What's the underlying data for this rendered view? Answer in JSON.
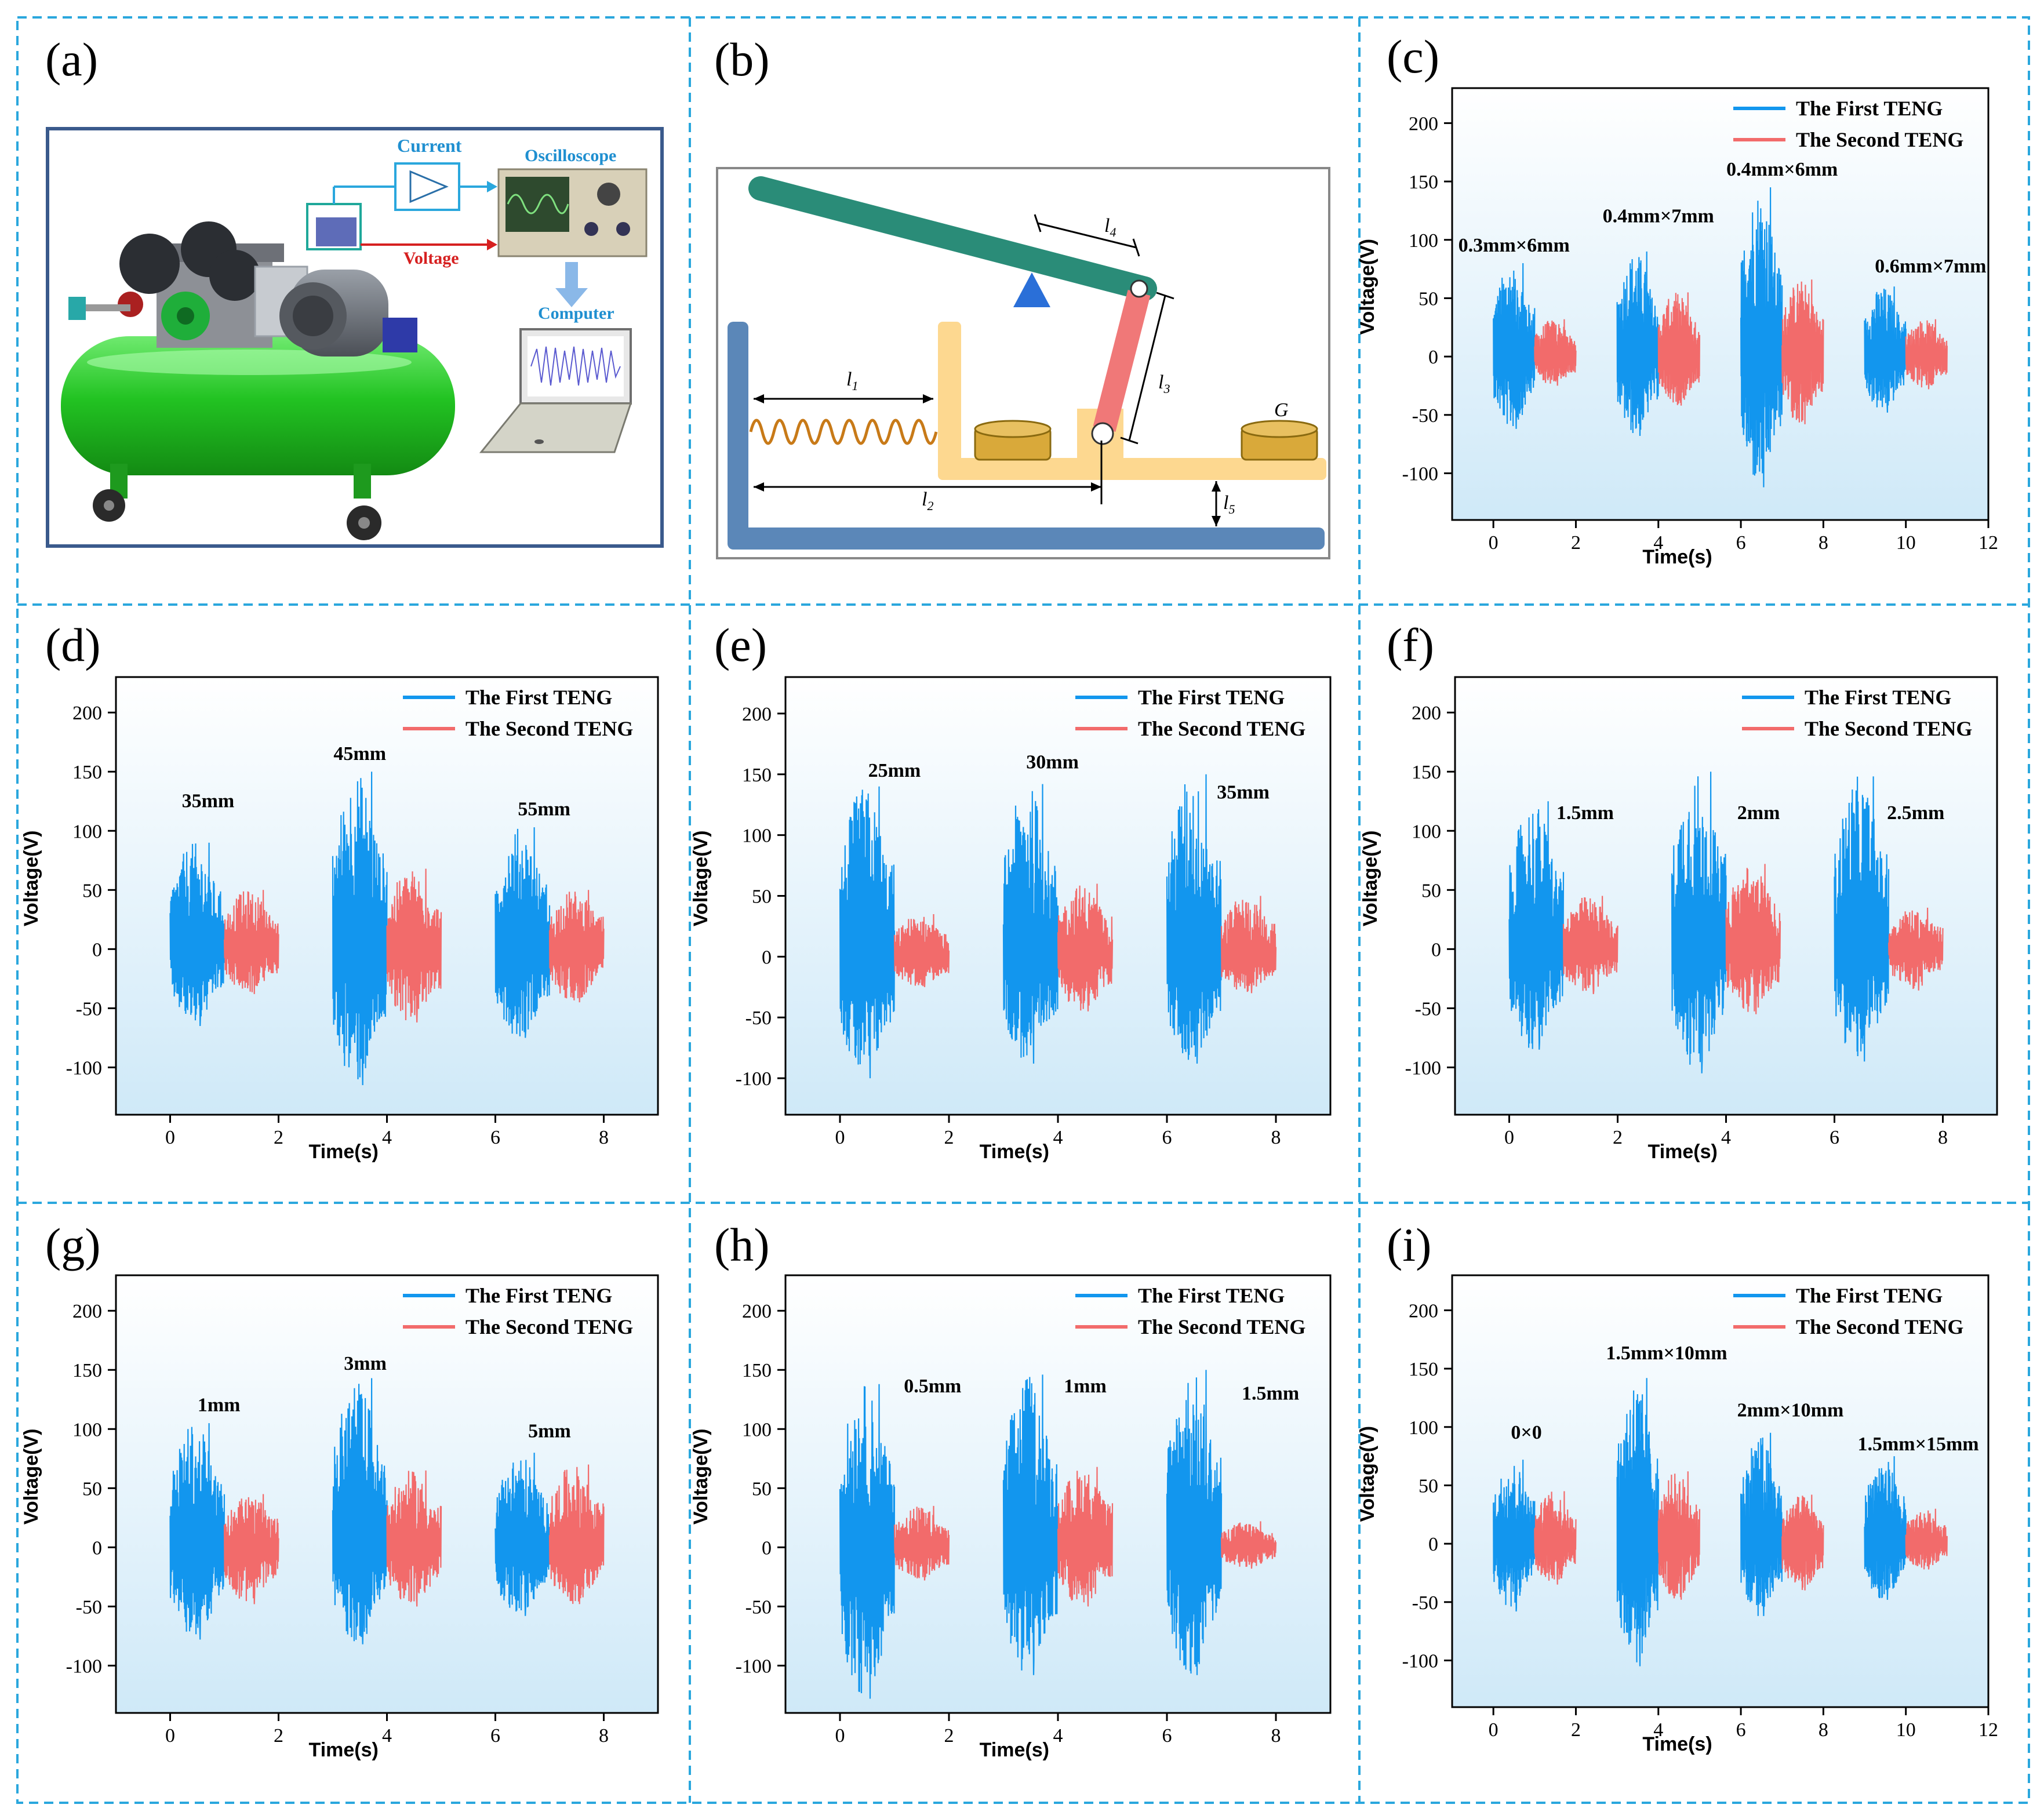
{
  "colors": {
    "first": "#1296ee",
    "second": "#f26b6b",
    "panel_border": "#2aa7dd",
    "axis": "#000000",
    "bg_top": "#ffffff",
    "bg_bottom": "#cfe9f8",
    "compressor_green": "#22c322",
    "machine_gray": "#7d8087",
    "lever_teal": "#2a8c78",
    "link_red": "#f07878",
    "frame_yellow": "#fdd890",
    "base_blue": "#5b87b8",
    "spring": "#c87a18",
    "weight": "#d9a93a",
    "pivot": "#2a6fd8"
  },
  "panels": {
    "a": {
      "label": "(a)",
      "current_label": "Current",
      "oscilloscope_label": "Oscilloscope",
      "voltage_label": "Voltage",
      "computer_label": "Computer"
    },
    "b": {
      "label": "(b)",
      "l4": "l",
      "l4_sub": "4",
      "l3": "l",
      "l3_sub": "3",
      "l1": "l",
      "l1_sub": "1",
      "l2": "l",
      "l2_sub": "2",
      "l5": "l",
      "l5_sub": "5",
      "g": "G"
    }
  },
  "chart_data": [
    {
      "id": "c",
      "label": "(c)",
      "type": "line",
      "xlabel": "Time(s)",
      "ylabel": "Voltage(V)",
      "xlim": [
        -1,
        12
      ],
      "ylim": [
        -140,
        230
      ],
      "xticks": [
        0,
        2,
        4,
        6,
        8,
        10,
        12
      ],
      "yticks": [
        -100,
        -50,
        0,
        50,
        100,
        150,
        200
      ],
      "legend": [
        "The First TENG",
        "The Second TENG"
      ],
      "groups": [
        {
          "label": "0.3mm×6mm",
          "label_x": 0.5,
          "label_y": 90,
          "first": {
            "t": [
              0,
              1
            ],
            "max": 80,
            "min": -62
          },
          "second": {
            "t": [
              1,
              2
            ],
            "max": 32,
            "min": -25
          }
        },
        {
          "label": "0.4mm×7mm",
          "label_x": 4.0,
          "label_y": 115,
          "first": {
            "t": [
              3,
              4
            ],
            "max": 90,
            "min": -68
          },
          "second": {
            "t": [
              4,
              5
            ],
            "max": 55,
            "min": -42
          }
        },
        {
          "label": "0.4mm×6mm",
          "label_x": 7.0,
          "label_y": 155,
          "first": {
            "t": [
              6,
              7
            ],
            "max": 145,
            "min": -112
          },
          "second": {
            "t": [
              7,
              8
            ],
            "max": 66,
            "min": -58
          }
        },
        {
          "label": "0.6mm×7mm",
          "label_x": 10.6,
          "label_y": 72,
          "first": {
            "t": [
              9,
              10
            ],
            "max": 60,
            "min": -48
          },
          "second": {
            "t": [
              10,
              11
            ],
            "max": 32,
            "min": -28
          }
        }
      ]
    },
    {
      "id": "d",
      "label": "(d)",
      "type": "line",
      "xlabel": "Time(s)",
      "ylabel": "Voltage(V)",
      "xlim": [
        -1,
        9
      ],
      "ylim": [
        -140,
        230
      ],
      "xticks": [
        0,
        2,
        4,
        6,
        8
      ],
      "yticks": [
        -100,
        -50,
        0,
        50,
        100,
        150,
        200
      ],
      "legend": [
        "The First TENG",
        "The Second TENG"
      ],
      "groups": [
        {
          "label": "35mm",
          "label_x": 0.7,
          "label_y": 120,
          "first": {
            "t": [
              0,
              1
            ],
            "max": 90,
            "min": -65
          },
          "second": {
            "t": [
              1,
              2
            ],
            "max": 50,
            "min": -38
          }
        },
        {
          "label": "45mm",
          "label_x": 3.5,
          "label_y": 160,
          "first": {
            "t": [
              3,
              4
            ],
            "max": 150,
            "min": -115
          },
          "second": {
            "t": [
              4,
              5
            ],
            "max": 68,
            "min": -62
          }
        },
        {
          "label": "55mm",
          "label_x": 6.9,
          "label_y": 113,
          "first": {
            "t": [
              6,
              7
            ],
            "max": 103,
            "min": -75
          },
          "second": {
            "t": [
              7,
              8
            ],
            "max": 50,
            "min": -45
          }
        }
      ]
    },
    {
      "id": "e",
      "label": "(e)",
      "type": "line",
      "xlabel": "Time(s)",
      "ylabel": "Voltage(V)",
      "xlim": [
        -1,
        9
      ],
      "ylim": [
        -130,
        230
      ],
      "xticks": [
        0,
        2,
        4,
        6,
        8
      ],
      "yticks": [
        -100,
        -50,
        0,
        50,
        100,
        150,
        200
      ],
      "legend": [
        "The First TENG",
        "The Second TENG"
      ],
      "groups": [
        {
          "label": "25mm",
          "label_x": 1.0,
          "label_y": 148,
          "first": {
            "t": [
              0,
              1
            ],
            "max": 140,
            "min": -100
          },
          "second": {
            "t": [
              1,
              2
            ],
            "max": 35,
            "min": -25
          }
        },
        {
          "label": "30mm",
          "label_x": 3.9,
          "label_y": 155,
          "first": {
            "t": [
              3,
              4
            ],
            "max": 142,
            "min": -88
          },
          "second": {
            "t": [
              4,
              5
            ],
            "max": 60,
            "min": -45
          }
        },
        {
          "label": "35mm",
          "label_x": 7.4,
          "label_y": 130,
          "first": {
            "t": [
              6,
              7
            ],
            "max": 150,
            "min": -88
          },
          "second": {
            "t": [
              7,
              8
            ],
            "max": 50,
            "min": -30
          }
        }
      ]
    },
    {
      "id": "f",
      "label": "(f)",
      "type": "line",
      "xlabel": "Time(s)",
      "ylabel": "Voltage(V)",
      "xlim": [
        -1,
        9
      ],
      "ylim": [
        -140,
        230
      ],
      "xticks": [
        0,
        2,
        4,
        6,
        8
      ],
      "yticks": [
        -100,
        -50,
        0,
        50,
        100,
        150,
        200
      ],
      "legend": [
        "The First TENG",
        "The Second TENG"
      ],
      "groups": [
        {
          "label": "1.5mm",
          "label_x": 1.4,
          "label_y": 110,
          "first": {
            "t": [
              0,
              1
            ],
            "max": 125,
            "min": -85
          },
          "second": {
            "t": [
              1,
              2
            ],
            "max": 45,
            "min": -38
          }
        },
        {
          "label": "2mm",
          "label_x": 4.6,
          "label_y": 110,
          "first": {
            "t": [
              3,
              4
            ],
            "max": 150,
            "min": -105
          },
          "second": {
            "t": [
              4,
              5
            ],
            "max": 72,
            "min": -55
          }
        },
        {
          "label": "2.5mm",
          "label_x": 7.5,
          "label_y": 110,
          "first": {
            "t": [
              6,
              7
            ],
            "max": 146,
            "min": -95
          },
          "second": {
            "t": [
              7,
              8
            ],
            "max": 35,
            "min": -35
          }
        }
      ]
    },
    {
      "id": "g",
      "label": "(g)",
      "type": "line",
      "xlabel": "Time(s)",
      "ylabel": "Voltage(V)",
      "xlim": [
        -1,
        9
      ],
      "ylim": [
        -140,
        230
      ],
      "xticks": [
        0,
        2,
        4,
        6,
        8
      ],
      "yticks": [
        -100,
        -50,
        0,
        50,
        100,
        150,
        200
      ],
      "legend": [
        "The First TENG",
        "The Second TENG"
      ],
      "groups": [
        {
          "label": "1mm",
          "label_x": 0.9,
          "label_y": 115,
          "first": {
            "t": [
              0,
              1
            ],
            "max": 105,
            "min": -78
          },
          "second": {
            "t": [
              1,
              2
            ],
            "max": 45,
            "min": -48
          }
        },
        {
          "label": "3mm",
          "label_x": 3.6,
          "label_y": 150,
          "first": {
            "t": [
              3,
              4
            ],
            "max": 143,
            "min": -82
          },
          "second": {
            "t": [
              4,
              5
            ],
            "max": 65,
            "min": -50
          }
        },
        {
          "label": "5mm",
          "label_x": 7.0,
          "label_y": 93,
          "first": {
            "t": [
              6,
              7
            ],
            "max": 80,
            "min": -58
          },
          "second": {
            "t": [
              7,
              8
            ],
            "max": 70,
            "min": -48
          }
        }
      ]
    },
    {
      "id": "h",
      "label": "(h)",
      "type": "line",
      "xlabel": "Time(s)",
      "ylabel": "Voltage(V)",
      "xlim": [
        -1,
        9
      ],
      "ylim": [
        -140,
        230
      ],
      "xticks": [
        0,
        2,
        4,
        6,
        8
      ],
      "yticks": [
        -100,
        -50,
        0,
        50,
        100,
        150,
        200
      ],
      "legend": [
        "The First TENG",
        "The Second TENG"
      ],
      "groups": [
        {
          "label": "0.5mm",
          "label_x": 1.7,
          "label_y": 131,
          "first": {
            "t": [
              0,
              1
            ],
            "max": 138,
            "min": -128
          },
          "second": {
            "t": [
              1,
              2
            ],
            "max": 35,
            "min": -28
          }
        },
        {
          "label": "1mm",
          "label_x": 4.5,
          "label_y": 131,
          "first": {
            "t": [
              3,
              4
            ],
            "max": 146,
            "min": -108
          },
          "second": {
            "t": [
              4,
              5
            ],
            "max": 68,
            "min": -50
          }
        },
        {
          "label": "1.5mm",
          "label_x": 7.9,
          "label_y": 125,
          "first": {
            "t": [
              6,
              7
            ],
            "max": 150,
            "min": -108
          },
          "second": {
            "t": [
              7,
              8
            ],
            "max": 22,
            "min": -18
          }
        }
      ]
    },
    {
      "id": "i",
      "label": "(i)",
      "type": "line",
      "xlabel": "Time(s)",
      "ylabel": "Voltage(V)",
      "xlim": [
        -1,
        12
      ],
      "ylim": [
        -140,
        230
      ],
      "xticks": [
        0,
        2,
        4,
        6,
        8,
        10,
        12
      ],
      "yticks": [
        -100,
        -50,
        0,
        50,
        100,
        150,
        200
      ],
      "legend": [
        "The First TENG",
        "The Second TENG"
      ],
      "groups": [
        {
          "label": "0×0",
          "label_x": 0.8,
          "label_y": 90,
          "first": {
            "t": [
              0,
              1
            ],
            "max": 72,
            "min": -58
          },
          "second": {
            "t": [
              1,
              2
            ],
            "max": 45,
            "min": -35
          }
        },
        {
          "label": "1.5mm×10mm",
          "label_x": 4.2,
          "label_y": 158,
          "first": {
            "t": [
              3,
              4
            ],
            "max": 142,
            "min": -105
          },
          "second": {
            "t": [
              4,
              5
            ],
            "max": 62,
            "min": -48
          }
        },
        {
          "label": "2mm×10mm",
          "label_x": 7.2,
          "label_y": 109,
          "first": {
            "t": [
              6,
              7
            ],
            "max": 95,
            "min": -62
          },
          "second": {
            "t": [
              7,
              8
            ],
            "max": 42,
            "min": -40
          }
        },
        {
          "label": "1.5mm×15mm",
          "label_x": 10.3,
          "label_y": 80,
          "first": {
            "t": [
              9,
              10
            ],
            "max": 75,
            "min": -48
          },
          "second": {
            "t": [
              10,
              11
            ],
            "max": 30,
            "min": -22
          }
        }
      ]
    }
  ]
}
